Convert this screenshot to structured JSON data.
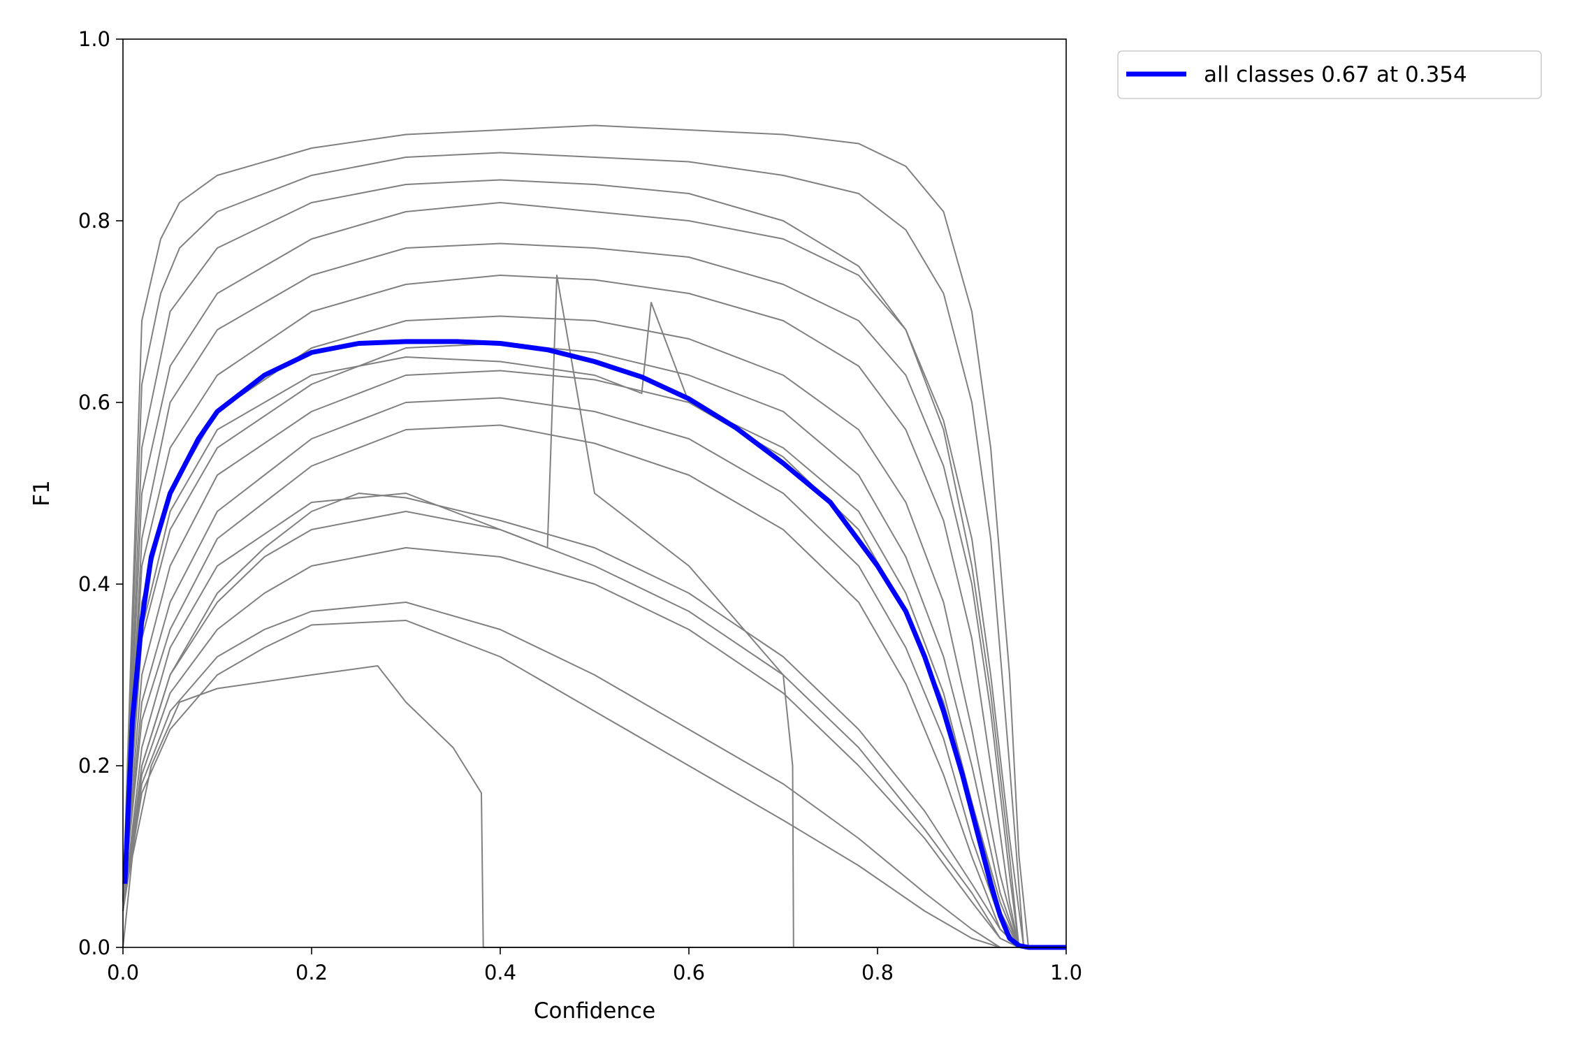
{
  "chart_data": {
    "type": "line",
    "title": "",
    "xlabel": "Confidence",
    "ylabel": "F1",
    "xlim": [
      0.0,
      1.0
    ],
    "ylim": [
      0.0,
      1.0
    ],
    "xticks": [
      "0.0",
      "0.2",
      "0.4",
      "0.6",
      "0.8",
      "1.0"
    ],
    "yticks": [
      "0.0",
      "0.2",
      "0.4",
      "0.6",
      "0.8",
      "1.0"
    ],
    "grid": false,
    "legend_position": "outside-top-right",
    "colors": {
      "per_class": "#808080",
      "all_classes": "#0000ff"
    },
    "series": [
      {
        "name": "all classes 0.67 at 0.354",
        "color": "#0000ff",
        "x": [
          0.002,
          0.01,
          0.02,
          0.03,
          0.05,
          0.08,
          0.1,
          0.15,
          0.2,
          0.25,
          0.3,
          0.354,
          0.4,
          0.45,
          0.5,
          0.55,
          0.6,
          0.65,
          0.7,
          0.75,
          0.8,
          0.83,
          0.85,
          0.87,
          0.89,
          0.9,
          0.91,
          0.92,
          0.93,
          0.94,
          0.95,
          0.96,
          1.0
        ],
        "y": [
          0.07,
          0.25,
          0.36,
          0.43,
          0.5,
          0.56,
          0.59,
          0.63,
          0.655,
          0.665,
          0.667,
          0.667,
          0.665,
          0.658,
          0.645,
          0.628,
          0.604,
          0.572,
          0.533,
          0.49,
          0.42,
          0.37,
          0.32,
          0.26,
          0.19,
          0.15,
          0.11,
          0.07,
          0.035,
          0.01,
          0.002,
          0.0,
          0.0
        ]
      },
      {
        "x": [
          0.0,
          0.02,
          0.04,
          0.06,
          0.1,
          0.2,
          0.3,
          0.4,
          0.5,
          0.6,
          0.7,
          0.78,
          0.83,
          0.87,
          0.9,
          0.92,
          0.94,
          0.95,
          0.96,
          1.0
        ],
        "y": [
          0.05,
          0.69,
          0.78,
          0.82,
          0.85,
          0.88,
          0.895,
          0.9,
          0.905,
          0.9,
          0.895,
          0.885,
          0.86,
          0.81,
          0.7,
          0.55,
          0.3,
          0.1,
          0.0,
          0.0
        ]
      },
      {
        "x": [
          0.0,
          0.02,
          0.04,
          0.06,
          0.1,
          0.2,
          0.3,
          0.4,
          0.5,
          0.6,
          0.7,
          0.78,
          0.83,
          0.87,
          0.9,
          0.92,
          0.94,
          0.955,
          1.0
        ],
        "y": [
          0.05,
          0.62,
          0.72,
          0.77,
          0.81,
          0.85,
          0.87,
          0.875,
          0.87,
          0.865,
          0.85,
          0.83,
          0.79,
          0.72,
          0.6,
          0.45,
          0.2,
          0.0,
          0.0
        ]
      },
      {
        "x": [
          0.0,
          0.02,
          0.05,
          0.1,
          0.2,
          0.3,
          0.4,
          0.5,
          0.6,
          0.7,
          0.78,
          0.83,
          0.87,
          0.9,
          0.92,
          0.94,
          0.95,
          1.0
        ],
        "y": [
          0.05,
          0.55,
          0.7,
          0.77,
          0.82,
          0.84,
          0.845,
          0.84,
          0.83,
          0.8,
          0.75,
          0.68,
          0.57,
          0.42,
          0.28,
          0.1,
          0.0,
          0.0
        ]
      },
      {
        "x": [
          0.0,
          0.02,
          0.05,
          0.1,
          0.2,
          0.3,
          0.4,
          0.5,
          0.6,
          0.7,
          0.78,
          0.83,
          0.87,
          0.9,
          0.92,
          0.94,
          0.955,
          1.0
        ],
        "y": [
          0.05,
          0.5,
          0.64,
          0.72,
          0.78,
          0.81,
          0.82,
          0.81,
          0.8,
          0.78,
          0.74,
          0.68,
          0.58,
          0.45,
          0.3,
          0.12,
          0.0,
          0.0
        ]
      },
      {
        "x": [
          0.0,
          0.02,
          0.05,
          0.1,
          0.2,
          0.3,
          0.4,
          0.5,
          0.6,
          0.7,
          0.78,
          0.83,
          0.87,
          0.9,
          0.92,
          0.94,
          0.95,
          1.0
        ],
        "y": [
          0.05,
          0.45,
          0.6,
          0.68,
          0.74,
          0.77,
          0.775,
          0.77,
          0.76,
          0.73,
          0.69,
          0.63,
          0.53,
          0.4,
          0.26,
          0.08,
          0.0,
          0.0
        ]
      },
      {
        "x": [
          0.0,
          0.02,
          0.05,
          0.1,
          0.2,
          0.3,
          0.4,
          0.5,
          0.6,
          0.7,
          0.78,
          0.83,
          0.87,
          0.9,
          0.92,
          0.94,
          0.95,
          1.0
        ],
        "y": [
          0.05,
          0.42,
          0.55,
          0.63,
          0.7,
          0.73,
          0.74,
          0.735,
          0.72,
          0.69,
          0.64,
          0.57,
          0.47,
          0.34,
          0.2,
          0.05,
          0.0,
          0.0
        ]
      },
      {
        "x": [
          0.0,
          0.02,
          0.05,
          0.1,
          0.2,
          0.3,
          0.4,
          0.5,
          0.6,
          0.7,
          0.78,
          0.83,
          0.87,
          0.9,
          0.93,
          0.95,
          1.0
        ],
        "y": [
          0.05,
          0.38,
          0.5,
          0.59,
          0.66,
          0.69,
          0.695,
          0.69,
          0.67,
          0.63,
          0.57,
          0.49,
          0.38,
          0.24,
          0.08,
          0.0,
          0.0
        ]
      },
      {
        "x": [
          0.0,
          0.02,
          0.05,
          0.1,
          0.2,
          0.3,
          0.4,
          0.5,
          0.6,
          0.7,
          0.78,
          0.83,
          0.87,
          0.9,
          0.93,
          0.95,
          1.0
        ],
        "y": [
          0.05,
          0.34,
          0.46,
          0.55,
          0.62,
          0.66,
          0.665,
          0.655,
          0.63,
          0.59,
          0.52,
          0.43,
          0.32,
          0.2,
          0.06,
          0.0,
          0.0
        ]
      },
      {
        "x": [
          0.0,
          0.02,
          0.05,
          0.1,
          0.2,
          0.3,
          0.4,
          0.5,
          0.6,
          0.7,
          0.78,
          0.83,
          0.87,
          0.9,
          0.93,
          0.95,
          1.0
        ],
        "y": [
          0.05,
          0.3,
          0.42,
          0.52,
          0.59,
          0.63,
          0.635,
          0.625,
          0.6,
          0.55,
          0.48,
          0.39,
          0.28,
          0.16,
          0.04,
          0.0,
          0.0
        ]
      },
      {
        "x": [
          0.0,
          0.02,
          0.05,
          0.1,
          0.2,
          0.3,
          0.4,
          0.5,
          0.6,
          0.7,
          0.78,
          0.83,
          0.87,
          0.9,
          0.93,
          0.95,
          1.0
        ],
        "y": [
          0.05,
          0.27,
          0.38,
          0.48,
          0.56,
          0.6,
          0.605,
          0.59,
          0.56,
          0.5,
          0.42,
          0.33,
          0.23,
          0.12,
          0.03,
          0.0,
          0.0
        ]
      },
      {
        "x": [
          0.0,
          0.02,
          0.05,
          0.1,
          0.2,
          0.3,
          0.4,
          0.5,
          0.6,
          0.7,
          0.78,
          0.83,
          0.87,
          0.9,
          0.93,
          0.95,
          1.0
        ],
        "y": [
          0.05,
          0.25,
          0.35,
          0.45,
          0.53,
          0.57,
          0.575,
          0.555,
          0.52,
          0.46,
          0.38,
          0.29,
          0.19,
          0.1,
          0.02,
          0.0,
          0.0
        ]
      },
      {
        "x": [
          0.0,
          0.02,
          0.05,
          0.1,
          0.15,
          0.2,
          0.25,
          0.3,
          0.4,
          0.5,
          0.6,
          0.7,
          0.78,
          0.85,
          0.9,
          0.93,
          0.95,
          1.0
        ],
        "y": [
          0.04,
          0.2,
          0.3,
          0.39,
          0.44,
          0.48,
          0.5,
          0.495,
          0.47,
          0.44,
          0.39,
          0.32,
          0.24,
          0.15,
          0.07,
          0.02,
          0.0,
          0.0
        ]
      },
      {
        "x": [
          0.0,
          0.02,
          0.05,
          0.1,
          0.15,
          0.2,
          0.3,
          0.4,
          0.5,
          0.6,
          0.7,
          0.78,
          0.85,
          0.9,
          0.93,
          0.95,
          1.0
        ],
        "y": [
          0.04,
          0.2,
          0.3,
          0.38,
          0.43,
          0.46,
          0.48,
          0.46,
          0.42,
          0.37,
          0.3,
          0.22,
          0.13,
          0.06,
          0.01,
          0.0,
          0.0
        ]
      },
      {
        "x": [
          0.0,
          0.02,
          0.05,
          0.1,
          0.15,
          0.2,
          0.3,
          0.4,
          0.5,
          0.6,
          0.7,
          0.78,
          0.85,
          0.9,
          0.93,
          0.95,
          1.0
        ],
        "y": [
          0.04,
          0.19,
          0.28,
          0.35,
          0.39,
          0.42,
          0.44,
          0.43,
          0.4,
          0.35,
          0.28,
          0.2,
          0.12,
          0.05,
          0.01,
          0.0,
          0.0
        ]
      },
      {
        "x": [
          0.0,
          0.02,
          0.05,
          0.1,
          0.15,
          0.2,
          0.3,
          0.4,
          0.5,
          0.6,
          0.7,
          0.78,
          0.85,
          0.9,
          0.93,
          0.95,
          1.0
        ],
        "y": [
          0.04,
          0.18,
          0.26,
          0.32,
          0.35,
          0.37,
          0.38,
          0.35,
          0.3,
          0.24,
          0.18,
          0.12,
          0.06,
          0.02,
          0.0,
          0.0,
          0.0
        ]
      },
      {
        "x": [
          0.0,
          0.02,
          0.05,
          0.1,
          0.15,
          0.2,
          0.3,
          0.4,
          0.5,
          0.6,
          0.7,
          0.78,
          0.85,
          0.9,
          0.93,
          1.0
        ],
        "y": [
          0.04,
          0.17,
          0.24,
          0.3,
          0.33,
          0.355,
          0.36,
          0.32,
          0.26,
          0.2,
          0.14,
          0.09,
          0.04,
          0.01,
          0.0,
          0.0
        ]
      },
      {
        "x": [
          0.0,
          0.01,
          0.03,
          0.06,
          0.1,
          0.2,
          0.27,
          0.3,
          0.35,
          0.38,
          0.382,
          1.0
        ],
        "y": [
          0.0,
          0.1,
          0.2,
          0.27,
          0.285,
          0.3,
          0.31,
          0.27,
          0.22,
          0.17,
          0.0,
          0.0
        ]
      },
      {
        "x": [
          0.0,
          0.02,
          0.05,
          0.1,
          0.2,
          0.3,
          0.4,
          0.5,
          0.55,
          0.56,
          0.6,
          0.7,
          0.78,
          0.83,
          0.87,
          0.9,
          0.93,
          0.95,
          1.0
        ],
        "y": [
          0.05,
          0.35,
          0.48,
          0.57,
          0.63,
          0.65,
          0.645,
          0.63,
          0.61,
          0.71,
          0.6,
          0.54,
          0.46,
          0.37,
          0.27,
          0.16,
          0.05,
          0.0,
          0.0
        ]
      },
      {
        "x": [
          0.0,
          0.02,
          0.05,
          0.1,
          0.2,
          0.3,
          0.4,
          0.45,
          0.46,
          0.5,
          0.6,
          0.7,
          0.71,
          0.711,
          0.8,
          0.85,
          0.9,
          1.0
        ],
        "y": [
          0.04,
          0.22,
          0.33,
          0.42,
          0.49,
          0.5,
          0.46,
          0.44,
          0.74,
          0.5,
          0.42,
          0.3,
          0.2,
          0.0,
          0.0,
          0.0,
          0.0,
          0.0
        ]
      }
    ]
  }
}
